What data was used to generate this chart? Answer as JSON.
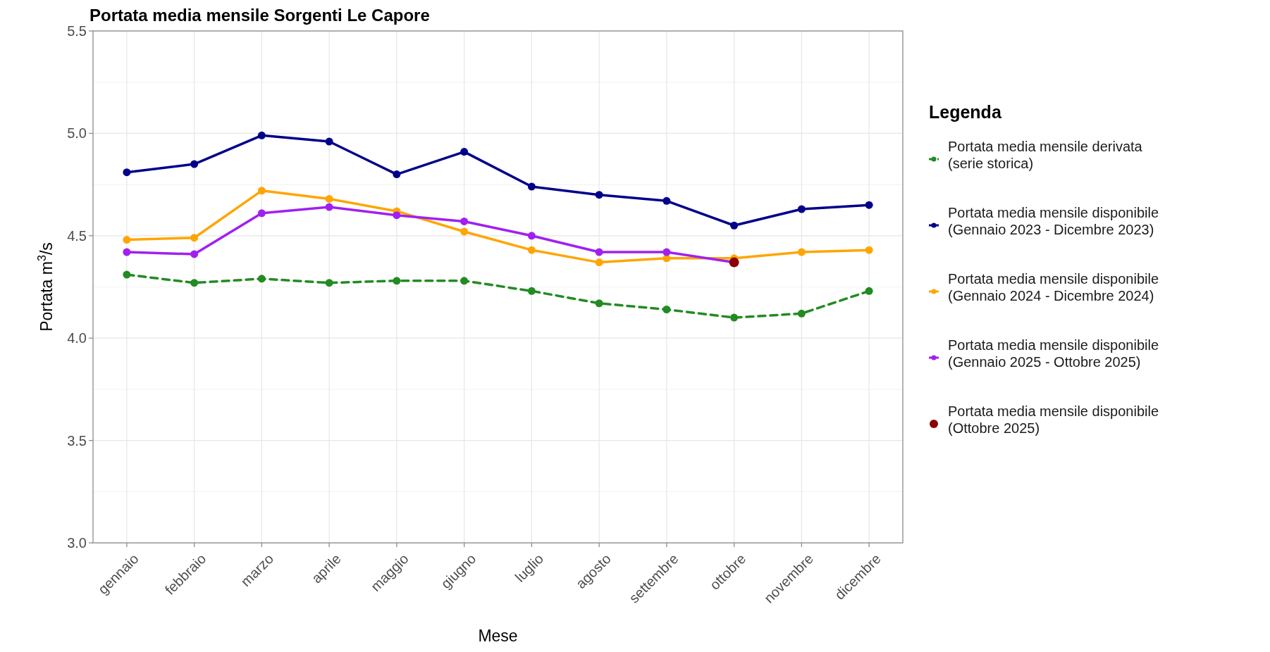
{
  "chart_data": {
    "type": "line",
    "title": "Portata media mensile Sorgenti Le Capore",
    "xlabel": "Mese",
    "ylabel": "Portata m$^{3}$/s",
    "legend_title": "Legenda",
    "categories": [
      "gennaio",
      "febbraio",
      "marzo",
      "aprile",
      "maggio",
      "giugno",
      "luglio",
      "agosto",
      "settembre",
      "ottobre",
      "novembre",
      "dicembre"
    ],
    "series": [
      {
        "name": "Portata media mensile derivata (serie storica)",
        "color": "#228b22",
        "line_style": "dashed",
        "values": [
          4.31,
          4.27,
          4.29,
          4.27,
          4.28,
          4.28,
          4.23,
          4.17,
          4.14,
          4.1,
          4.12,
          4.23
        ]
      },
      {
        "name": "Portata media mensile disponibile (Gennaio 2023 - Dicembre 2023)",
        "color": "#00008b",
        "values": [
          4.81,
          4.85,
          4.99,
          4.96,
          4.8,
          4.91,
          4.74,
          4.7,
          4.67,
          4.55,
          4.63,
          4.65
        ]
      },
      {
        "name": "Portata media mensile disponibile (Gennaio 2024 - Dicembre 2024)",
        "color": "#ffa500",
        "values": [
          4.48,
          4.49,
          4.72,
          4.68,
          4.62,
          4.52,
          4.43,
          4.37,
          4.39,
          4.39,
          4.42,
          4.43
        ]
      },
      {
        "name": "Portata media mensile disponibile (Gennaio 2025 - Ottobre 2025)",
        "color": "#a020f0",
        "values": [
          4.42,
          4.41,
          4.61,
          4.64,
          4.6,
          4.57,
          4.5,
          4.42,
          4.42,
          4.37,
          null,
          null
        ]
      },
      {
        "name": "Portata media mensile disponibile (Ottobre 2025)",
        "color": "#8b0000",
        "type": "scatter",
        "x": [
          "ottobre"
        ],
        "values": [
          4.37
        ]
      }
    ],
    "ylim": [
      3.0,
      5.5
    ],
    "yticks": [
      {
        "value": 3.0,
        "label": "3.0"
      },
      {
        "value": 3.25,
        "label": null
      },
      {
        "value": 3.5,
        "label": "3.5"
      },
      {
        "value": 3.75,
        "label": null
      },
      {
        "value": 4.0,
        "label": "4.0"
      },
      {
        "value": 4.25,
        "label": null
      },
      {
        "value": 4.5,
        "label": "4.5"
      },
      {
        "value": 4.75,
        "label": null
      },
      {
        "value": 5.0,
        "label": "5.0"
      },
      {
        "value": 5.25,
        "label": null
      },
      {
        "value": 5.5,
        "label": "5.5"
      }
    ],
    "grid": true,
    "legend": "right",
    "marker": "circle",
    "line_style": "solid"
  }
}
